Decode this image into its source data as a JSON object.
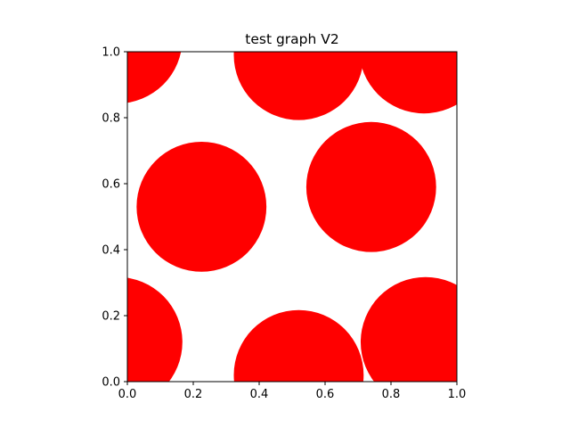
{
  "chart_data": {
    "type": "scatter",
    "title": "test graph V2",
    "xlabel": "",
    "ylabel": "",
    "xlim": [
      0.0,
      1.0
    ],
    "ylim": [
      0.0,
      1.0
    ],
    "grid": false,
    "marker_color": "#ff0000",
    "marker_radius": 0.197,
    "points": [
      {
        "x": -0.03,
        "y": 1.04
      },
      {
        "x": 0.52,
        "y": 0.99
      },
      {
        "x": 0.9,
        "y": 1.01
      },
      {
        "x": 0.225,
        "y": 0.53
      },
      {
        "x": 0.74,
        "y": 0.59
      },
      {
        "x": -0.03,
        "y": 0.12
      },
      {
        "x": 0.52,
        "y": 0.02
      },
      {
        "x": 0.905,
        "y": 0.12
      }
    ],
    "x_ticks": [
      "0.0",
      "0.2",
      "0.4",
      "0.6",
      "0.8",
      "1.0"
    ],
    "y_ticks": [
      "0.0",
      "0.2",
      "0.4",
      "0.6",
      "0.8",
      "1.0"
    ]
  }
}
